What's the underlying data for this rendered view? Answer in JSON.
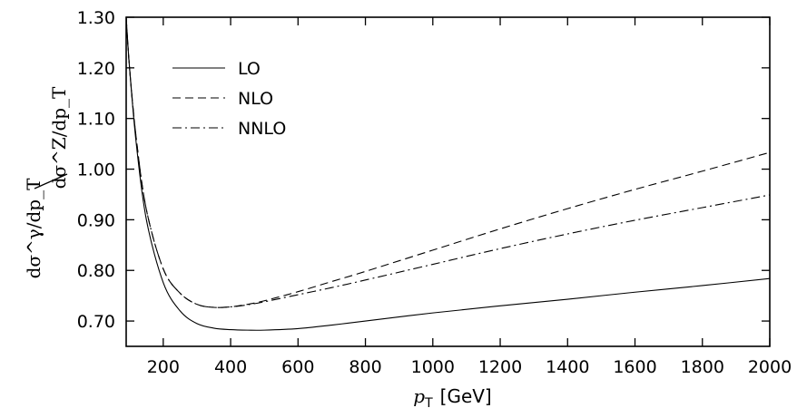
{
  "chart_data": {
    "type": "line",
    "xlabel_symbol": "p",
    "xlabel_sub": "T",
    "xlabel_unit": "[GeV]",
    "ylabel_num": "dσ^γ/dp_T",
    "ylabel_den": "dσ^Z/dp_T",
    "xlim": [
      90,
      2000
    ],
    "ylim": [
      0.65,
      1.3
    ],
    "xticks": [
      200,
      400,
      600,
      800,
      1000,
      1200,
      1400,
      1600,
      1800,
      2000
    ],
    "xtick_labels": [
      "200",
      "400",
      "600",
      "800",
      "1000",
      "1200",
      "1400",
      "1600",
      "1800",
      "2000"
    ],
    "yticks": [
      0.7,
      0.8,
      0.9,
      1.0,
      1.1,
      1.2,
      1.3
    ],
    "ytick_labels": [
      "0.70",
      "0.80",
      "0.90",
      "1.00",
      "1.10",
      "1.20",
      "1.30"
    ],
    "legend_position": "top-left",
    "series": [
      {
        "name": "LO",
        "style": "solid",
        "x": [
          90,
          100,
          120,
          150,
          200,
          250,
          300,
          350,
          400,
          450,
          500,
          600,
          700,
          800,
          1000,
          1200,
          1400,
          1600,
          1800,
          2000
        ],
        "y": [
          1.3,
          1.2,
          1.05,
          0.9,
          0.776,
          0.72,
          0.695,
          0.686,
          0.683,
          0.682,
          0.682,
          0.685,
          0.692,
          0.7,
          0.716,
          0.73,
          0.743,
          0.757,
          0.77,
          0.784
        ]
      },
      {
        "name": "NLO",
        "style": "dashed",
        "x": [
          90,
          100,
          120,
          150,
          200,
          250,
          300,
          350,
          400,
          450,
          500,
          600,
          700,
          800,
          1000,
          1200,
          1400,
          1600,
          1800,
          2000
        ],
        "y": [
          1.3,
          1.2,
          1.06,
          0.92,
          0.803,
          0.755,
          0.733,
          0.727,
          0.728,
          0.733,
          0.74,
          0.758,
          0.778,
          0.798,
          0.84,
          0.882,
          0.922,
          0.96,
          0.996,
          1.033
        ]
      },
      {
        "name": "NNLO",
        "style": "dashdot",
        "x": [
          90,
          100,
          120,
          150,
          200,
          250,
          300,
          350,
          400,
          450,
          500,
          600,
          700,
          800,
          1000,
          1200,
          1400,
          1600,
          1800,
          2000
        ],
        "y": [
          1.3,
          1.2,
          1.06,
          0.92,
          0.803,
          0.755,
          0.733,
          0.727,
          0.728,
          0.732,
          0.738,
          0.752,
          0.766,
          0.781,
          0.812,
          0.843,
          0.872,
          0.899,
          0.924,
          0.949
        ]
      }
    ]
  }
}
